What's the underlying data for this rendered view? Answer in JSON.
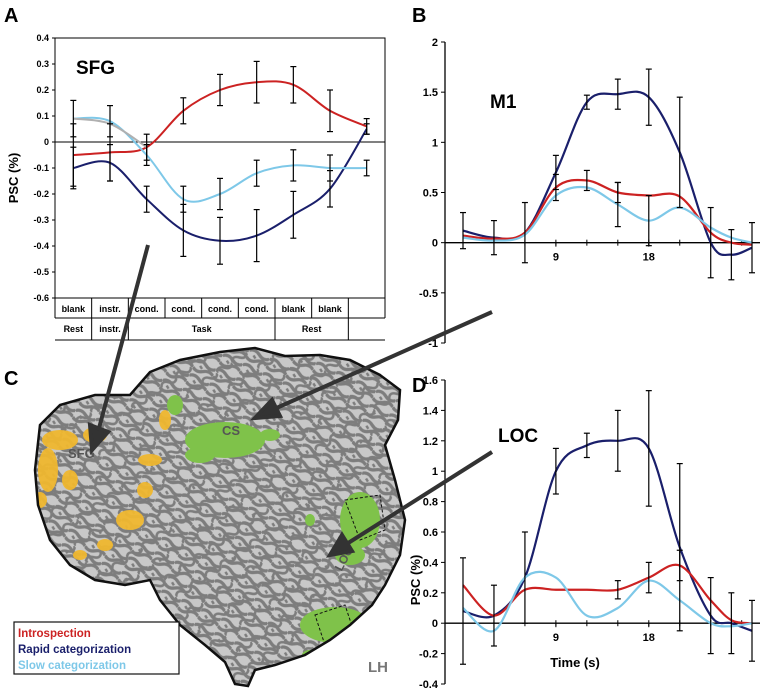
{
  "panels": {
    "a": {
      "letter": "A"
    },
    "b": {
      "letter": "B"
    },
    "c": {
      "letter": "C"
    },
    "d": {
      "letter": "D"
    }
  },
  "legend": {
    "items": [
      {
        "label": "Introspection",
        "color": "#cc2222"
      },
      {
        "label": "Rapid categorization",
        "color": "#1a1f6b"
      },
      {
        "label": "Slow categorization",
        "color": "#7ec8e8"
      }
    ]
  },
  "brain": {
    "labels": {
      "sfg": "SFG",
      "cs": "CS",
      "loc": "LOC",
      "hemisphere": "LH"
    },
    "colors": {
      "cortex_dark": "#7d7d7d",
      "cortex_light": "#c8c8c8",
      "activation_yellow": "#f0b830",
      "roi_green": "#7fc24a"
    }
  },
  "chart_data": [
    {
      "id": "A",
      "type": "line",
      "title": "SFG",
      "ylabel": "PSC (%)",
      "ylim": [
        -0.6,
        0.4
      ],
      "yticks": [
        "0.4",
        "0.3",
        "0.2",
        "0.1",
        "0",
        "-0.1",
        "-0.2",
        "-0.3",
        "-0.4",
        "-0.5",
        "-0.6"
      ],
      "x_table": {
        "row1": [
          "blank",
          "instr.",
          "cond.",
          "cond.",
          "cond.",
          "cond.",
          "blank",
          "blank"
        ],
        "row2": [
          {
            "label": "Rest",
            "span": 1
          },
          {
            "label": "instr.",
            "span": 1
          },
          {
            "label": "Task",
            "span": 4
          },
          {
            "label": "Rest",
            "span": 2
          }
        ]
      },
      "series": [
        {
          "name": "Introspection",
          "color": "#cc2222",
          "x": [
            0,
            1,
            2,
            3,
            4,
            5,
            6,
            7,
            8
          ],
          "values": [
            -0.05,
            -0.04,
            -0.02,
            0.12,
            0.2,
            0.23,
            0.22,
            0.12,
            0.06
          ],
          "err": [
            0.12,
            0.11,
            0.05,
            0.05,
            0.06,
            0.08,
            0.07,
            0.08,
            0.03
          ]
        },
        {
          "name": "Rapid categorization",
          "color": "#1a1f6b",
          "x": [
            0,
            1,
            2,
            3,
            4,
            5,
            6,
            7,
            8
          ],
          "values": [
            -0.1,
            -0.08,
            -0.22,
            -0.34,
            -0.38,
            -0.36,
            -0.28,
            -0.18,
            0.05
          ],
          "err": [
            0.08,
            0.07,
            0.05,
            0.1,
            0.09,
            0.1,
            0.09,
            0.07,
            0.02
          ]
        },
        {
          "name": "Slow categorization",
          "color": "#7ec8e8",
          "x": [
            0,
            1,
            2,
            3,
            4,
            5,
            6,
            7,
            8
          ],
          "values": [
            0.09,
            0.08,
            -0.05,
            -0.22,
            -0.2,
            -0.12,
            -0.09,
            -0.1,
            -0.1
          ],
          "err": [
            0.07,
            0.06,
            0.04,
            0.05,
            0.06,
            0.05,
            0.06,
            0.05,
            0.03
          ]
        },
        {
          "name": "Introspection pre",
          "color": "#b0b0b0",
          "x": [
            0,
            1,
            2
          ],
          "values": [
            0.09,
            0.07,
            -0.02
          ]
        }
      ]
    },
    {
      "id": "B",
      "type": "line",
      "title": "M1",
      "ylim": [
        -1,
        2
      ],
      "yticks": [
        "2",
        "1.5",
        "1",
        "0.5",
        "0",
        "-0.5",
        "-1"
      ],
      "xticks": [
        9,
        18
      ],
      "xlim": [
        0,
        28
      ],
      "series": [
        {
          "name": "Rapid categorization",
          "color": "#1a1f6b",
          "x": [
            0,
            3,
            6,
            9,
            12,
            15,
            18,
            21,
            24,
            26,
            28
          ],
          "values": [
            0.12,
            0.05,
            0.1,
            0.7,
            1.4,
            1.48,
            1.45,
            0.9,
            0.0,
            -0.12,
            -0.05
          ],
          "err": [
            0.18,
            0.17,
            0.3,
            0.17,
            0.07,
            0.15,
            0.28,
            0.55,
            0.35,
            0.25,
            0.25
          ]
        },
        {
          "name": "Introspection",
          "color": "#cc2222",
          "x": [
            0,
            3,
            6,
            9,
            12,
            15,
            18,
            21,
            24,
            26,
            28
          ],
          "values": [
            0.07,
            0.04,
            0.1,
            0.55,
            0.62,
            0.5,
            0.47,
            0.46,
            0.1,
            0.0,
            -0.02
          ],
          "err": [
            0.0,
            0.0,
            0.0,
            0.13,
            0.1,
            0.1,
            0.0,
            0.0,
            0.0,
            0.0,
            0.0
          ]
        },
        {
          "name": "Slow categorization",
          "color": "#7ec8e8",
          "x": [
            0,
            3,
            6,
            9,
            12,
            15,
            18,
            21,
            24,
            26,
            28
          ],
          "values": [
            0.05,
            0.02,
            0.08,
            0.47,
            0.55,
            0.38,
            0.22,
            0.35,
            0.15,
            0.05,
            0.0
          ],
          "err": [
            0.0,
            0.0,
            0.0,
            0.0,
            0.0,
            0.22,
            0.25,
            0.0,
            0.0,
            0.0,
            0.0
          ]
        }
      ]
    },
    {
      "id": "D",
      "type": "line",
      "title": "LOC",
      "xlabel": "Time (s)",
      "ylabel": "PSC (%)",
      "ylim": [
        -0.4,
        1.6
      ],
      "yticks": [
        "1.6",
        "1.4",
        "1.2",
        "1",
        "0.8",
        "0.6",
        "0.4",
        "0.2",
        "0",
        "-0.2",
        "-0.4"
      ],
      "xticks": [
        9,
        18
      ],
      "xlim": [
        0,
        28
      ],
      "series": [
        {
          "name": "Rapid categorization",
          "color": "#1a1f6b",
          "x": [
            0,
            3,
            6,
            9,
            12,
            15,
            18,
            21,
            24,
            26,
            28
          ],
          "values": [
            0.08,
            0.05,
            0.3,
            1.0,
            1.17,
            1.2,
            1.15,
            0.5,
            0.05,
            0.0,
            -0.05
          ],
          "err": [
            0.35,
            0.2,
            0.3,
            0.15,
            0.08,
            0.2,
            0.38,
            0.55,
            0.25,
            0.2,
            0.2
          ]
        },
        {
          "name": "Introspection",
          "color": "#cc2222",
          "x": [
            0,
            3,
            6,
            9,
            12,
            15,
            18,
            21,
            24,
            26,
            28
          ],
          "values": [
            0.25,
            0.05,
            0.22,
            0.22,
            0.22,
            0.22,
            0.3,
            0.38,
            0.15,
            0.02,
            0.0
          ],
          "err": [
            0.0,
            0.0,
            0.0,
            0.0,
            0.0,
            0.06,
            0.1,
            0.1,
            0.0,
            0.0,
            0.0
          ]
        },
        {
          "name": "Slow categorization",
          "color": "#7ec8e8",
          "x": [
            0,
            3,
            6,
            9,
            12,
            15,
            18,
            21,
            24,
            26,
            28
          ],
          "values": [
            0.1,
            -0.05,
            0.3,
            0.3,
            0.05,
            0.1,
            0.28,
            0.15,
            0.0,
            -0.02,
            0.0
          ],
          "err": [
            0.0,
            0.0,
            0.0,
            0.0,
            0.0,
            0.0,
            0.0,
            0.0,
            0.0,
            0.0,
            0.0
          ]
        }
      ]
    }
  ]
}
